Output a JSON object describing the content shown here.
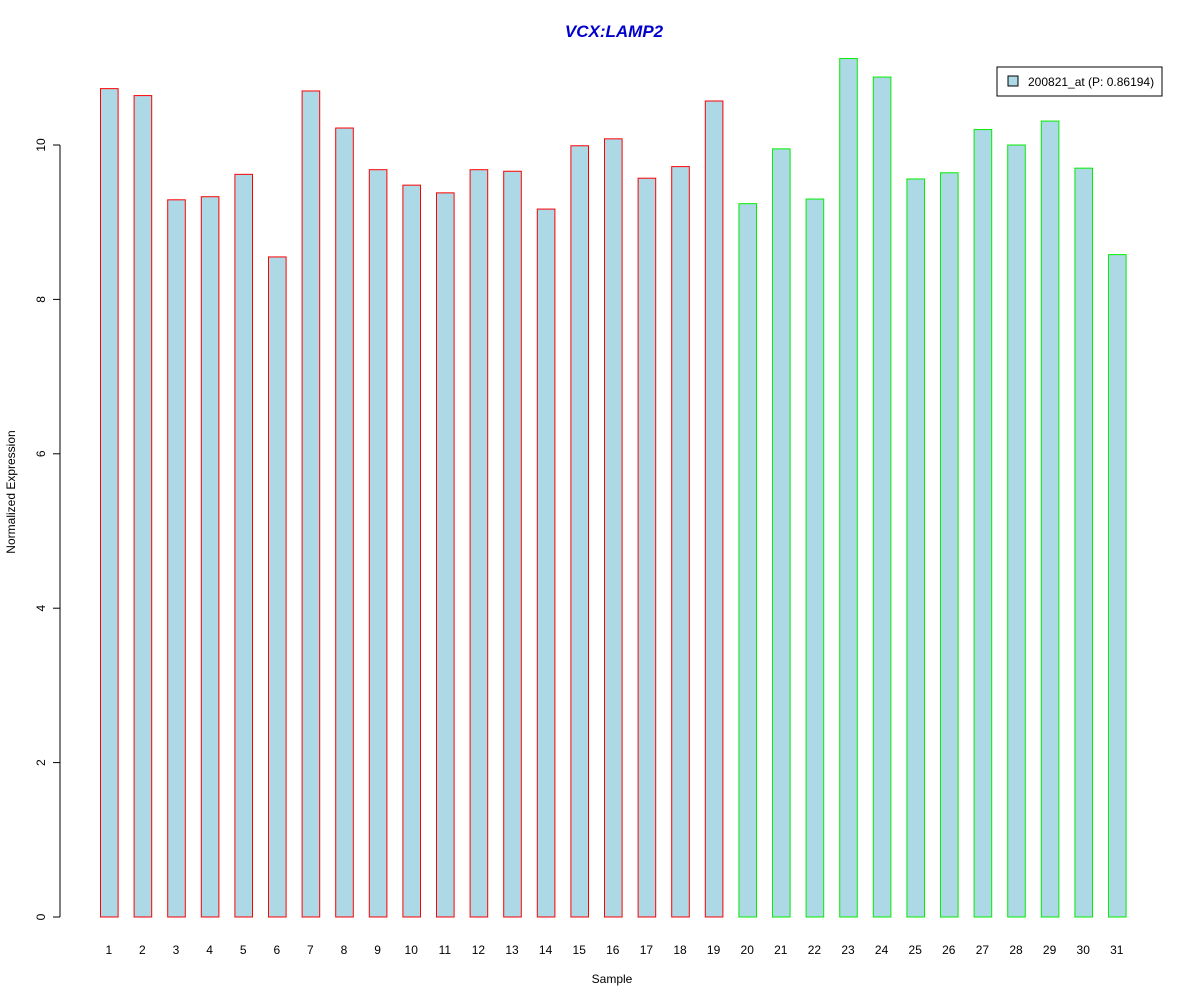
{
  "chart_data": {
    "type": "bar",
    "title": "VCX:LAMP2",
    "xlabel": "Sample",
    "ylabel": "Normalized Expression",
    "ylim": [
      0,
      11.1
    ],
    "yticks": [
      0,
      2,
      4,
      6,
      8,
      10
    ],
    "grid": false,
    "legend_position": "top-right",
    "categories": [
      "1",
      "2",
      "3",
      "4",
      "5",
      "6",
      "7",
      "8",
      "9",
      "10",
      "11",
      "12",
      "13",
      "14",
      "15",
      "16",
      "17",
      "18",
      "19",
      "20",
      "21",
      "22",
      "23",
      "24",
      "25",
      "26",
      "27",
      "28",
      "29",
      "30",
      "31"
    ],
    "series": [
      {
        "name": "200821_at (P: 0.86194)",
        "fill_color": "#add8e6",
        "values": [
          10.73,
          10.64,
          9.29,
          9.33,
          9.62,
          8.55,
          10.7,
          10.22,
          9.68,
          9.48,
          9.38,
          9.68,
          9.66,
          9.17,
          9.99,
          10.08,
          9.57,
          9.72,
          10.57,
          9.24,
          9.95,
          9.3,
          11.12,
          10.88,
          9.56,
          9.64,
          10.2,
          10.0,
          10.31,
          9.7,
          8.58
        ]
      }
    ],
    "outline_colors": [
      "#ff0000",
      "#ff0000",
      "#ff0000",
      "#ff0000",
      "#ff0000",
      "#ff0000",
      "#ff0000",
      "#ff0000",
      "#ff0000",
      "#ff0000",
      "#ff0000",
      "#ff0000",
      "#ff0000",
      "#ff0000",
      "#ff0000",
      "#ff0000",
      "#ff0000",
      "#ff0000",
      "#ff0000",
      "#00ee00",
      "#00ee00",
      "#00ee00",
      "#00ee00",
      "#00ee00",
      "#00ee00",
      "#00ee00",
      "#00ee00",
      "#00ee00",
      "#00ee00",
      "#00ee00",
      "#00ee00"
    ]
  }
}
